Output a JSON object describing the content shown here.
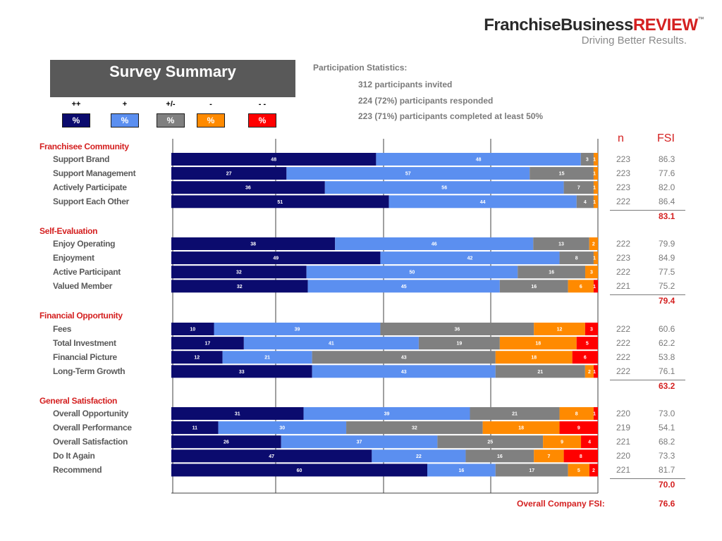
{
  "logo": {
    "part1": "FranchiseBusiness",
    "part2": "REVIEW",
    "tm": "™",
    "tagline": "Driving Better Results."
  },
  "title": "Survey Summary",
  "legend": [
    {
      "symbol": "++",
      "text": "%",
      "color": "#0b0b6e"
    },
    {
      "symbol": "+",
      "text": "%",
      "color": "#5b8ff0"
    },
    {
      "symbol": "+/-",
      "text": "%",
      "color": "#808080"
    },
    {
      "symbol": "-",
      "text": "%",
      "color": "#ff8a00"
    },
    {
      "symbol": "- -",
      "text": "%",
      "color": "#ff0000"
    }
  ],
  "participation": {
    "title": "Participation Statistics:",
    "lines": [
      "312 participants invited",
      "224 (72%) participants responded",
      "223 (71%) participants completed at least 50%"
    ]
  },
  "columns": {
    "n": "n",
    "fsi": "FSI"
  },
  "colors": {
    "pp": "#0b0b6e",
    "p": "#5b8ff0",
    "neutral": "#808080",
    "m": "#ff8a00",
    "mm": "#ff0000",
    "accent": "#d42020"
  },
  "chart_data": {
    "type": "bar",
    "orientation": "horizontal-stacked-100",
    "series_order": [
      "++",
      "+",
      "+/-",
      "-",
      "- -"
    ],
    "sections": [
      {
        "name": "Franchisee Community",
        "fsi": "83.1",
        "rows": [
          {
            "label": "Support Brand",
            "values": [
              48,
              48,
              3,
              1,
              0
            ],
            "n": "223",
            "fsi": "86.3"
          },
          {
            "label": "Support Management",
            "values": [
              27,
              57,
              15,
              1,
              0
            ],
            "n": "223",
            "fsi": "77.6"
          },
          {
            "label": "Actively Participate",
            "values": [
              36,
              56,
              7,
              1,
              0
            ],
            "n": "223",
            "fsi": "82.0"
          },
          {
            "label": "Support Each Other",
            "values": [
              51,
              44,
              4,
              1,
              0
            ],
            "n": "222",
            "fsi": "86.4"
          }
        ]
      },
      {
        "name": "Self-Evaluation",
        "fsi": "79.4",
        "rows": [
          {
            "label": "Enjoy Operating",
            "values": [
              38,
              46,
              13,
              2,
              0
            ],
            "n": "222",
            "fsi": "79.9"
          },
          {
            "label": "Enjoyment",
            "values": [
              49,
              42,
              8,
              1,
              0
            ],
            "n": "223",
            "fsi": "84.9"
          },
          {
            "label": "Active Participant",
            "values": [
              32,
              50,
              16,
              3,
              0
            ],
            "n": "222",
            "fsi": "77.5"
          },
          {
            "label": "Valued Member",
            "values": [
              32,
              45,
              16,
              6,
              1
            ],
            "n": "221",
            "fsi": "75.2"
          }
        ]
      },
      {
        "name": "Financial Opportunity",
        "fsi": "63.2",
        "rows": [
          {
            "label": "Fees",
            "values": [
              10,
              39,
              36,
              12,
              3
            ],
            "n": "222",
            "fsi": "60.6"
          },
          {
            "label": "Total Investment",
            "values": [
              17,
              41,
              19,
              18,
              5
            ],
            "n": "222",
            "fsi": "62.2"
          },
          {
            "label": "Financial Picture",
            "values": [
              12,
              21,
              43,
              18,
              6
            ],
            "n": "222",
            "fsi": "53.8"
          },
          {
            "label": "Long-Term Growth",
            "values": [
              33,
              43,
              21,
              2,
              1
            ],
            "n": "222",
            "fsi": "76.1"
          }
        ]
      },
      {
        "name": "General Satisfaction",
        "fsi": "70.0",
        "rows": [
          {
            "label": "Overall Opportunity",
            "values": [
              31,
              39,
              21,
              8,
              1
            ],
            "n": "220",
            "fsi": "73.0"
          },
          {
            "label": "Overall Performance",
            "values": [
              11,
              30,
              32,
              18,
              9
            ],
            "n": "219",
            "fsi": "54.1"
          },
          {
            "label": "Overall Satisfaction",
            "values": [
              26,
              37,
              25,
              9,
              4
            ],
            "n": "221",
            "fsi": "68.2"
          },
          {
            "label": "Do It Again",
            "values": [
              47,
              22,
              16,
              7,
              8
            ],
            "n": "220",
            "fsi": "73.3"
          },
          {
            "label": "Recommend",
            "values": [
              60,
              16,
              17,
              5,
              2
            ],
            "n": "221",
            "fsi": "81.7"
          }
        ]
      }
    ],
    "xlim": [
      0,
      100
    ],
    "grid": true
  },
  "overall": {
    "label": "Overall Company FSI:",
    "value": "76.6"
  }
}
